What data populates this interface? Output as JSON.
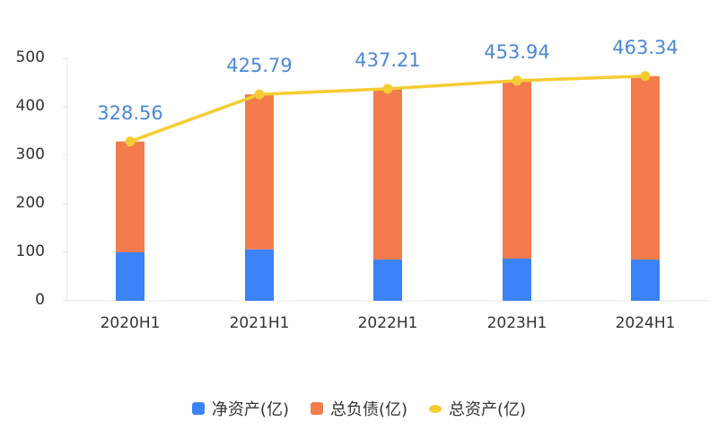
{
  "chart_data": {
    "type": "bar",
    "stacked": true,
    "title": "",
    "xlabel": "",
    "ylabel": "",
    "ylim": [
      0,
      500
    ],
    "yticks": [
      0,
      100,
      200,
      300,
      400,
      500
    ],
    "categories": [
      "2020H1",
      "2021H1",
      "2022H1",
      "2023H1",
      "2024H1"
    ],
    "series": [
      {
        "name": "净资产(亿)",
        "type": "bar",
        "color": "#3b82f6",
        "values": [
          100,
          106,
          85,
          87,
          85
        ]
      },
      {
        "name": "总负债(亿)",
        "type": "bar",
        "color": "#f47c4c",
        "values": [
          228.56,
          319.79,
          352.21,
          366.94,
          378.34
        ]
      },
      {
        "name": "总资产(亿)",
        "type": "line",
        "color": "#f5cd32",
        "values": [
          328.56,
          425.79,
          437.21,
          453.94,
          463.34
        ]
      }
    ],
    "data_labels": [
      "328.56",
      "425.79",
      "437.21",
      "453.94",
      "463.34"
    ],
    "legend_position": "bottom",
    "grid": false
  },
  "legend": {
    "net_assets": "净资产(亿)",
    "liabilities": "总负债(亿)",
    "total_assets": "总资产(亿)"
  }
}
